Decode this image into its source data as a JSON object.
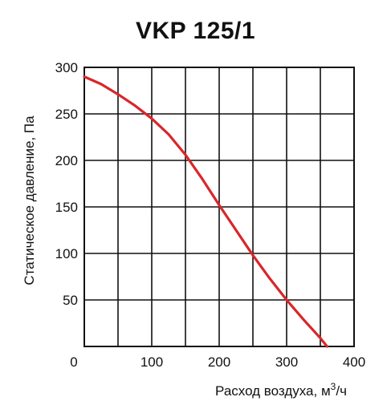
{
  "chart_data": {
    "type": "line",
    "title": "VKP 125/1",
    "xlabel": "Расход воздуха, м",
    "xlabel_sup": "3",
    "xlabel_suffix": "/ч",
    "ylabel": "Статическое давление, Па",
    "xlim": [
      0,
      400
    ],
    "ylim": [
      0,
      300
    ],
    "xticks": [
      0,
      100,
      200,
      300,
      400
    ],
    "xtick_labels": [
      "0",
      "100",
      "200",
      "300",
      "400"
    ],
    "yticks": [
      50,
      100,
      150,
      200,
      250,
      300
    ],
    "ytick_labels": [
      "50",
      "100",
      "150",
      "200",
      "250",
      "300"
    ],
    "grid": true,
    "x_grid_step": 50,
    "y_grid_step": 50,
    "series": [
      {
        "color": "#d9262a",
        "x": [
          0,
          25,
          50,
          75,
          100,
          125,
          150,
          175,
          200,
          225,
          250,
          275,
          300,
          325,
          350,
          360
        ],
        "y": [
          290,
          282,
          271,
          259,
          245,
          228,
          206,
          180,
          152,
          125,
          98,
          73,
          50,
          29,
          9,
          0
        ]
      }
    ]
  }
}
